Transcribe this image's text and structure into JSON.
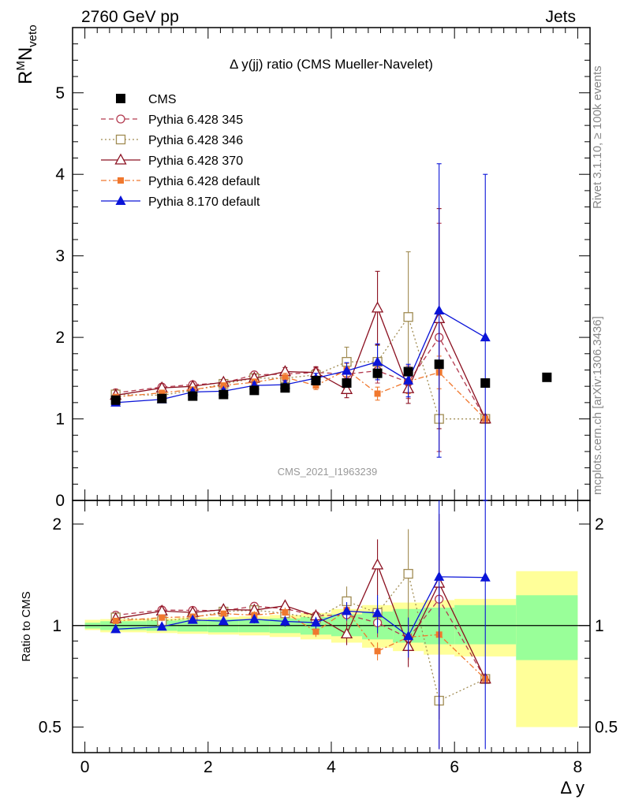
{
  "header": {
    "left": "2760 GeV pp",
    "right": "Jets"
  },
  "side": {
    "rivet": "Rivet 3.1.10, ≥ 100k events",
    "mcplots": "mcplots.cern.ch [arXiv:1306.3436]"
  },
  "chart_data": {
    "type": "scatter",
    "title": "Δ y(jj) ratio (CMS Mueller-Navelet)",
    "watermark": "CMS_2021_I1963239",
    "ylabel": {
      "base": "R",
      "sup": "M",
      "main": "N",
      "sub": "veto"
    },
    "xlabel": "Δ y",
    "ratio_ylabel": "Ratio to CMS",
    "xlim": [
      -0.2,
      8.2
    ],
    "ylim": [
      0,
      5.8
    ],
    "ratio_ylim": [
      0.42,
      2.35
    ],
    "x_ticks": [
      "0",
      "2",
      "4",
      "6",
      "8"
    ],
    "y_ticks": [
      "0",
      "1",
      "2",
      "3",
      "4",
      "5"
    ],
    "ratio_ticks": [
      "0.5",
      "1",
      "2"
    ],
    "legend_position": "top-left",
    "data": {
      "name": "CMS",
      "x": [
        0.5,
        1.25,
        1.75,
        2.25,
        2.75,
        3.25,
        3.75,
        4.25,
        4.75,
        5.25,
        5.75,
        6.5,
        7.5
      ],
      "y": [
        1.23,
        1.25,
        1.28,
        1.3,
        1.35,
        1.38,
        1.47,
        1.44,
        1.56,
        1.58,
        1.67,
        1.44,
        1.51
      ]
    },
    "uncertainty_band": {
      "edges": [
        0,
        0.25,
        1,
        1.5,
        2,
        2.5,
        3,
        3.5,
        4,
        4.5,
        5,
        5.5,
        6,
        7,
        8
      ],
      "inner": [
        [
          0.98,
          1.02
        ],
        [
          0.97,
          1.03
        ],
        [
          0.965,
          1.035
        ],
        [
          0.96,
          1.04
        ],
        [
          0.955,
          1.045
        ],
        [
          0.955,
          1.045
        ],
        [
          0.95,
          1.05
        ],
        [
          0.94,
          1.06
        ],
        [
          0.93,
          1.08
        ],
        [
          0.91,
          1.1
        ],
        [
          0.89,
          1.12
        ],
        [
          0.88,
          1.13
        ],
        [
          0.88,
          1.15
        ],
        [
          0.79,
          1.23
        ]
      ],
      "outer": [
        [
          0.97,
          1.04
        ],
        [
          0.955,
          1.045
        ],
        [
          0.95,
          1.05
        ],
        [
          0.945,
          1.055
        ],
        [
          0.94,
          1.06
        ],
        [
          0.935,
          1.065
        ],
        [
          0.925,
          1.075
        ],
        [
          0.91,
          1.09
        ],
        [
          0.89,
          1.12
        ],
        [
          0.86,
          1.15
        ],
        [
          0.84,
          1.17
        ],
        [
          0.82,
          1.19
        ],
        [
          0.81,
          1.2
        ],
        [
          0.5,
          1.45
        ]
      ]
    },
    "series": [
      {
        "name": "Pythia 6.428 345",
        "color": "#b33a4f",
        "marker": "circle-open",
        "dash": "6,4",
        "x": [
          0.5,
          1.25,
          1.75,
          2.25,
          2.75,
          3.25,
          3.75,
          4.25,
          4.75,
          5.25,
          5.75,
          6.5
        ],
        "y": [
          1.32,
          1.39,
          1.42,
          1.44,
          1.54,
          1.55,
          1.57,
          1.55,
          1.59,
          1.45,
          2.0,
          1.0
        ],
        "err": [
          0.02,
          0.03,
          0.03,
          0.03,
          0.04,
          0.05,
          0.06,
          0.1,
          0.15,
          0.2,
          1.4,
          0
        ]
      },
      {
        "name": "Pythia 6.428 346",
        "color": "#a08b52",
        "marker": "square-open",
        "dash": "2,3",
        "x": [
          0.5,
          1.25,
          1.75,
          2.25,
          2.75,
          3.25,
          3.75,
          4.25,
          4.75,
          5.25,
          5.75,
          6.5
        ],
        "y": [
          1.3,
          1.29,
          1.35,
          1.43,
          1.5,
          1.5,
          1.54,
          1.7,
          1.7,
          2.25,
          1.0,
          1.0
        ],
        "err": [
          0.02,
          0.03,
          0.03,
          0.03,
          0.04,
          0.05,
          0.06,
          0.18,
          0.2,
          0.8,
          0,
          0
        ]
      },
      {
        "name": "Pythia 6.428 370",
        "color": "#8b1020",
        "marker": "triangle-open",
        "dash": "",
        "x": [
          0.5,
          1.25,
          1.75,
          2.25,
          2.75,
          3.25,
          3.75,
          4.25,
          4.75,
          5.25,
          5.75,
          6.5
        ],
        "y": [
          1.29,
          1.38,
          1.4,
          1.45,
          1.5,
          1.58,
          1.57,
          1.36,
          2.36,
          1.37,
          2.23,
          1.0
        ],
        "err": [
          0.02,
          0.03,
          0.03,
          0.03,
          0.04,
          0.05,
          0.07,
          0.1,
          0.45,
          0.18,
          1.35,
          0
        ]
      },
      {
        "name": "Pythia 6.428 default",
        "color": "#f0782e",
        "marker": "square-filled-small",
        "dash": "7,3,2,3",
        "x": [
          0.5,
          1.25,
          1.75,
          2.25,
          2.75,
          3.25,
          3.75,
          4.25,
          4.75,
          5.25,
          5.75,
          6.5
        ],
        "y": [
          1.27,
          1.32,
          1.36,
          1.41,
          1.45,
          1.51,
          1.41,
          1.6,
          1.31,
          1.46,
          1.57,
          1.0
        ],
        "err": [
          0.02,
          0.03,
          0.03,
          0.03,
          0.04,
          0.05,
          0.05,
          0.08,
          0.08,
          0.15,
          0.2,
          0
        ]
      },
      {
        "name": "Pythia 8.170 default",
        "color": "#0a14d8",
        "marker": "triangle-filled",
        "dash": "",
        "x": [
          0.5,
          1.25,
          1.75,
          2.25,
          2.75,
          3.25,
          3.75,
          4.25,
          4.75,
          5.25,
          5.75,
          6.5
        ],
        "y": [
          1.2,
          1.24,
          1.33,
          1.34,
          1.41,
          1.42,
          1.5,
          1.59,
          1.7,
          1.47,
          2.33,
          2.0
        ],
        "err": [
          0.02,
          0.03,
          0.03,
          0.03,
          0.04,
          0.05,
          0.06,
          0.1,
          0.22,
          0.2,
          1.8,
          2.0
        ]
      }
    ]
  }
}
